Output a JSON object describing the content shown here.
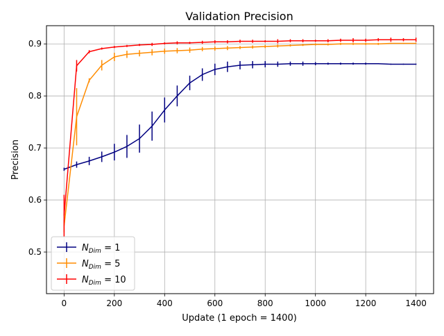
{
  "chart_data": {
    "type": "line",
    "title": "Validation Precision",
    "xlabel": "Update (1 epoch = 1400)",
    "ylabel": "Precision",
    "xlim": [
      -70,
      1470
    ],
    "ylim": [
      0.42,
      0.935
    ],
    "xticks": [
      0,
      200,
      400,
      600,
      800,
      1000,
      1200,
      1400
    ],
    "yticks": [
      0.5,
      0.6,
      0.7,
      0.8,
      0.9
    ],
    "ytick_labels": [
      "0.5",
      "0.6",
      "0.7",
      "0.8",
      "0.9"
    ],
    "grid": true,
    "legend": {
      "placement": "lower-left",
      "subscript": "Dim"
    },
    "x": [
      0,
      50,
      100,
      150,
      200,
      250,
      300,
      350,
      400,
      450,
      500,
      550,
      600,
      650,
      700,
      750,
      800,
      850,
      900,
      950,
      1000,
      1050,
      1100,
      1150,
      1200,
      1250,
      1300,
      1350,
      1400
    ],
    "series": [
      {
        "name": "N_Dim = 1",
        "legend_base": "N",
        "legend_suffix": " = 1",
        "color": "#000080",
        "values": [
          0.659,
          0.668,
          0.675,
          0.683,
          0.692,
          0.703,
          0.718,
          0.742,
          0.773,
          0.8,
          0.825,
          0.841,
          0.851,
          0.856,
          0.859,
          0.86,
          0.861,
          0.861,
          0.862,
          0.862,
          0.862,
          0.862,
          0.862,
          0.862,
          0.862,
          0.862,
          0.861,
          0.861,
          0.861
        ],
        "errors": [
          0.003,
          0.006,
          0.008,
          0.01,
          0.016,
          0.022,
          0.027,
          0.028,
          0.024,
          0.02,
          0.014,
          0.012,
          0.011,
          0.01,
          0.008,
          0.007,
          0.006,
          0.005,
          0.004,
          0.004,
          0.003,
          0.002,
          0.002,
          0.002,
          0.002,
          0.001,
          0.001,
          0.001,
          0.001
        ]
      },
      {
        "name": "N_Dim = 5",
        "legend_base": "N",
        "legend_suffix": " = 5",
        "color": "#ff8c00",
        "values": [
          0.55,
          0.76,
          0.83,
          0.859,
          0.875,
          0.88,
          0.882,
          0.884,
          0.886,
          0.887,
          0.888,
          0.89,
          0.891,
          0.892,
          0.893,
          0.894,
          0.895,
          0.896,
          0.897,
          0.898,
          0.899,
          0.899,
          0.9,
          0.9,
          0.9,
          0.9,
          0.901,
          0.901,
          0.901
        ],
        "errors": [
          0.012,
          0.055,
          0.004,
          0.01,
          0.008,
          0.007,
          0.006,
          0.006,
          0.005,
          0.005,
          0.005,
          0.004,
          0.004,
          0.004,
          0.003,
          0.003,
          0.003,
          0.003,
          0.002,
          0.002,
          0.002,
          0.002,
          0.002,
          0.002,
          0.002,
          0.002,
          0.001,
          0.001,
          0.001
        ]
      },
      {
        "name": "N_Dim = 10",
        "legend_base": "N",
        "legend_suffix": " = 10",
        "color": "#ff0000",
        "values": [
          0.57,
          0.858,
          0.885,
          0.891,
          0.894,
          0.896,
          0.898,
          0.899,
          0.901,
          0.902,
          0.902,
          0.903,
          0.904,
          0.904,
          0.905,
          0.905,
          0.905,
          0.905,
          0.906,
          0.906,
          0.906,
          0.906,
          0.907,
          0.907,
          0.907,
          0.908,
          0.908,
          0.908,
          0.908
        ],
        "errors": [
          0.04,
          0.011,
          0.003,
          0.002,
          0.002,
          0.002,
          0.002,
          0.003,
          0.002,
          0.003,
          0.002,
          0.003,
          0.003,
          0.003,
          0.003,
          0.003,
          0.002,
          0.004,
          0.003,
          0.003,
          0.002,
          0.003,
          0.003,
          0.004,
          0.003,
          0.003,
          0.004,
          0.003,
          0.004
        ]
      }
    ]
  }
}
